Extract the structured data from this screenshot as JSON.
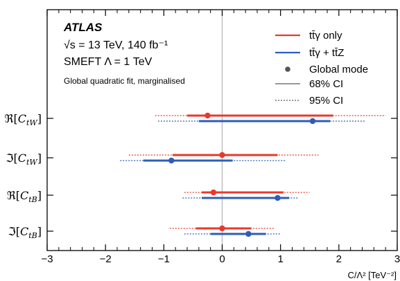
{
  "chart_data": {
    "type": "scatter",
    "experiment": "ATLAS",
    "energy_line": "√s = 13 TeV, 140 fb⁻¹",
    "model_line": "SMEFT Λ = 1 TeV",
    "fit_line": "Global quadratic fit, marginalised",
    "xlabel": "C/Λ² [TeV⁻²]",
    "xlim": [
      -3,
      3
    ],
    "xticks": [
      "−3",
      "−2",
      "−1",
      "0",
      "1",
      "2",
      "3"
    ],
    "xtick_values": [
      -3,
      -2,
      -1,
      0,
      1,
      2,
      3
    ],
    "categories": [
      "ℜ[C_tW]",
      "ℑ[C_tW]",
      "ℜ[C_tB]",
      "ℑ[C_tB]"
    ],
    "category_labels": [
      {
        "op": "ℜ[",
        "sym": "C",
        "sub": "tW",
        "close": "]"
      },
      {
        "op": "ℑ[",
        "sym": "C",
        "sub": "tW",
        "close": "]"
      },
      {
        "op": "ℜ[",
        "sym": "C",
        "sub": "tB",
        "close": "]"
      },
      {
        "op": "ℑ[",
        "sym": "C",
        "sub": "tB",
        "close": "]"
      }
    ],
    "series": [
      {
        "name": "tt̄γ only",
        "color": "#e8392b",
        "mode": [
          -0.25,
          0.0,
          -0.15,
          0.0
        ],
        "ci68": [
          [
            -0.6,
            1.9
          ],
          [
            -0.85,
            0.95
          ],
          [
            -0.35,
            1.05
          ],
          [
            -0.45,
            0.5
          ]
        ],
        "ci95": [
          [
            -1.15,
            2.8
          ],
          [
            -1.6,
            1.65
          ],
          [
            -0.65,
            1.5
          ],
          [
            -0.9,
            0.9
          ]
        ]
      },
      {
        "name": "tt̄γ + tt̄Z",
        "color": "#2e5db8",
        "mode": [
          1.55,
          -0.87,
          0.95,
          0.45
        ],
        "ci68": [
          [
            -0.4,
            1.85
          ],
          [
            -1.35,
            0.18
          ],
          [
            -0.35,
            1.15
          ],
          [
            -0.2,
            0.75
          ]
        ],
        "ci95": [
          [
            -1.1,
            2.45
          ],
          [
            -1.75,
            1.1
          ],
          [
            -0.68,
            1.3
          ],
          [
            -0.65,
            1.0
          ]
        ]
      }
    ],
    "legend": {
      "placement": "top-right",
      "mode_label": "Global mode",
      "ci68_label": "68% CI",
      "ci95_label": "95% CI"
    },
    "grid": false,
    "zero_line": true
  }
}
